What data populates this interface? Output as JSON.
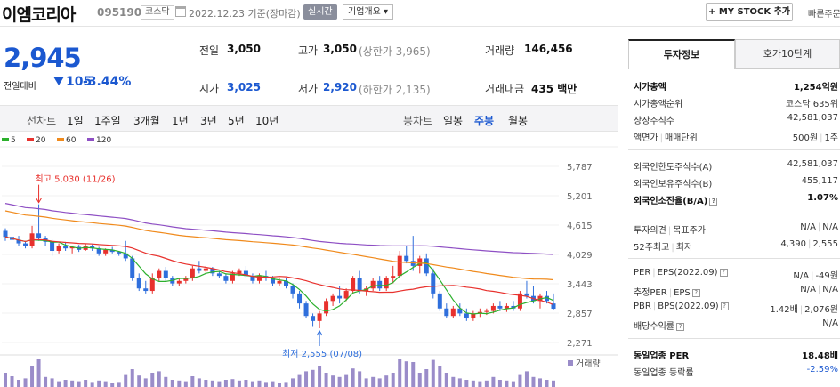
{
  "header": {
    "company_name": "이엠코리아",
    "stock_code": "095190",
    "market": "코스닥",
    "date_text": "2022.12.23  기준(장마감)",
    "realtime_label": "실시간",
    "overview_label": "기업개요 ▾",
    "my_stock_label": "+ MY STOCK 추가",
    "fast_link_label": "빠른주문"
  },
  "price": {
    "current": "2,945",
    "change_label": "전일대비",
    "change_amount": "105",
    "change_pct": "-3.44%"
  },
  "summary": {
    "prev_close_label": "전일",
    "prev_close": "3,050",
    "high_label": "고가",
    "high": "3,050",
    "upper_limit_text": "(상한가 3,965)",
    "volume_label": "거래량",
    "volume": "146,456",
    "open_label": "시가",
    "open": "3,025",
    "low_label": "저가",
    "low": "2,920",
    "lower_limit_text": "(하한가 2,135)",
    "amount_label": "거래대금",
    "amount": "435 백만"
  },
  "chart_tabs": {
    "line_label": "선차트",
    "line_items": [
      "1일",
      "1주일",
      "3개월",
      "1년",
      "3년",
      "5년",
      "10년"
    ],
    "candle_label": "봉차트",
    "candle_items": [
      "일봉",
      "주봉",
      "월봉"
    ],
    "candle_selected": "주봉"
  },
  "right_panel": {
    "tab_invest": "투자정보",
    "tab_orderbook": "호가10단계",
    "rows": {
      "mktcap_label": "시가총액",
      "mktcap": "1,254억원",
      "rank_label": "시가총액순위",
      "rank": "코스닥 635위",
      "shares_label": "상장주식수",
      "shares": "42,581,037",
      "par_label": "액면가",
      "unit_label": "매매단위",
      "par_value": "500원",
      "unit_value": "1주",
      "foreign_limit_label": "외국인한도주식수(A)",
      "foreign_limit": "42,581,037",
      "foreign_hold_label": "외국인보유주식수(B)",
      "foreign_hold": "455,117",
      "foreign_ratio_label": "외국인소진율(B/A)",
      "foreign_ratio": "1.07%",
      "opinion_label": "투자의견",
      "target_label": "목표주가",
      "opinion_value": "N/A",
      "target_value": "N/A",
      "w52_high_label": "52주최고",
      "w52_low_label": "최저",
      "w52_high": "4,390",
      "w52_low": "2,555",
      "per_label": "PER",
      "eps_label": "EPS(2022.09)",
      "per_value": "N/A",
      "eps_value": "-49원",
      "est_per_label": "추정PER",
      "est_eps_label": "EPS",
      "est_per_value": "N/A",
      "est_eps_value": "N/A",
      "pbr_label": "PBR",
      "bps_label": "BPS(2022.09)",
      "pbr_value": "1.42배",
      "bps_value": "2,076원",
      "div_label": "배당수익률",
      "div_value": "N/A",
      "ind_per_label": "동일업종 PER",
      "ind_per": "18.48배",
      "ind_rate_label": "동일업종 등락률",
      "ind_rate": "-2.59%"
    }
  },
  "chart_data": {
    "type": "candlestick",
    "ma_legend": [
      {
        "name": "5",
        "color": "#2cb02c"
      },
      {
        "name": "20",
        "color": "#e8312d"
      },
      {
        "name": "60",
        "color": "#f08a1c"
      },
      {
        "name": "120",
        "color": "#8e4fc4"
      }
    ],
    "y_ticks": [
      "5,787",
      "5,201",
      "4,615",
      "4,029",
      "3,443",
      "2,857",
      "2,271"
    ],
    "y_range": [
      2271,
      5787
    ],
    "max_label": "최고 5,030 (11/26)",
    "min_label": "최저 2,555 (07/08)",
    "volume_label": "거래량",
    "up_color": "#e8312d",
    "down_color": "#2f6fdc",
    "candles": [
      [
        4500,
        4550,
        4300,
        4380
      ],
      [
        4380,
        4420,
        4250,
        4320
      ],
      [
        4320,
        4400,
        4200,
        4250
      ],
      [
        4250,
        4300,
        4150,
        4200
      ],
      [
        4200,
        4600,
        4150,
        4450
      ],
      [
        4450,
        5030,
        4300,
        4350
      ],
      [
        4350,
        4400,
        4200,
        4280
      ],
      [
        4280,
        4320,
        4000,
        4100
      ],
      [
        4100,
        4250,
        4050,
        4200
      ],
      [
        4200,
        4280,
        4100,
        4150
      ],
      [
        4150,
        4200,
        4050,
        4180
      ],
      [
        4180,
        4220,
        4080,
        4120
      ],
      [
        4120,
        4250,
        4100,
        4200
      ],
      [
        4200,
        4230,
        4100,
        4150
      ],
      [
        4150,
        4180,
        4000,
        4050
      ],
      [
        4050,
        4150,
        4000,
        4120
      ],
      [
        4120,
        4180,
        4050,
        4080
      ],
      [
        4080,
        4100,
        4000,
        4050
      ],
      [
        4050,
        4300,
        3900,
        3950
      ],
      [
        3950,
        4000,
        3500,
        3550
      ],
      [
        3550,
        3650,
        3300,
        3350
      ],
      [
        3350,
        3500,
        3250,
        3300
      ],
      [
        3300,
        3650,
        3250,
        3550
      ],
      [
        3550,
        3750,
        3500,
        3700
      ],
      [
        3700,
        3780,
        3500,
        3550
      ],
      [
        3550,
        3600,
        3400,
        3450
      ],
      [
        3450,
        3550,
        3400,
        3500
      ],
      [
        3500,
        3600,
        3450,
        3550
      ],
      [
        3550,
        3800,
        3500,
        3750
      ],
      [
        3750,
        3900,
        3650,
        3700
      ],
      [
        3700,
        3800,
        3650,
        3750
      ],
      [
        3750,
        3780,
        3600,
        3650
      ],
      [
        3650,
        3700,
        3550,
        3600
      ],
      [
        3600,
        3650,
        3450,
        3500
      ],
      [
        3500,
        3700,
        3450,
        3650
      ],
      [
        3650,
        3750,
        3600,
        3700
      ],
      [
        3700,
        3800,
        3550,
        3600
      ],
      [
        3600,
        3650,
        3450,
        3500
      ],
      [
        3500,
        3650,
        3450,
        3600
      ],
      [
        3600,
        3700,
        3500,
        3550
      ],
      [
        3550,
        3600,
        3400,
        3450
      ],
      [
        3450,
        3550,
        3400,
        3500
      ],
      [
        3500,
        3550,
        3350,
        3400
      ],
      [
        3400,
        3450,
        3150,
        3250
      ],
      [
        3250,
        3300,
        2950,
        3050
      ],
      [
        3050,
        3100,
        2750,
        2800
      ],
      [
        2800,
        2850,
        2600,
        2700
      ],
      [
        2700,
        2900,
        2555,
        2850
      ],
      [
        2850,
        3150,
        2800,
        3100
      ],
      [
        3100,
        3250,
        3000,
        3200
      ],
      [
        3200,
        3400,
        3050,
        3150
      ],
      [
        3150,
        3350,
        3100,
        3300
      ],
      [
        3300,
        3600,
        3250,
        3550
      ],
      [
        3550,
        3700,
        3250,
        3300
      ],
      [
        3300,
        3400,
        3200,
        3350
      ],
      [
        3350,
        3550,
        3300,
        3500
      ],
      [
        3500,
        3600,
        3300,
        3350
      ],
      [
        3350,
        3600,
        3300,
        3550
      ],
      [
        3550,
        3800,
        3450,
        3600
      ],
      [
        3600,
        4100,
        3550,
        4000
      ],
      [
        4000,
        4200,
        3850,
        3900
      ],
      [
        3900,
        4400,
        3700,
        3800
      ],
      [
        3800,
        4000,
        3650,
        3950
      ],
      [
        3950,
        4050,
        3600,
        3650
      ],
      [
        3650,
        3750,
        3150,
        3250
      ],
      [
        3250,
        3300,
        2900,
        2950
      ],
      [
        2950,
        3050,
        2750,
        2800
      ],
      [
        2800,
        3000,
        2750,
        2950
      ],
      [
        2950,
        3050,
        2800,
        2850
      ],
      [
        2850,
        2950,
        2700,
        2750
      ],
      [
        2750,
        2900,
        2700,
        2850
      ],
      [
        2850,
        2950,
        2780,
        2880
      ],
      [
        2880,
        2950,
        2820,
        2900
      ],
      [
        2900,
        3050,
        2850,
        3000
      ],
      [
        3000,
        3100,
        2900,
        2950
      ],
      [
        2950,
        3050,
        2880,
        3000
      ],
      [
        3000,
        3100,
        2900,
        2950
      ],
      [
        2950,
        3300,
        2900,
        3250
      ],
      [
        3250,
        3500,
        3150,
        3200
      ],
      [
        3200,
        3400,
        3050,
        3100
      ],
      [
        3100,
        3250,
        2950,
        3200
      ],
      [
        3200,
        3300,
        3050,
        3100
      ],
      [
        3050,
        3250,
        2920,
        2945
      ]
    ],
    "volumes": [
      20,
      15,
      10,
      12,
      30,
      40,
      14,
      12,
      8,
      10,
      9,
      8,
      10,
      7,
      9,
      8,
      6,
      7,
      18,
      25,
      16,
      12,
      20,
      22,
      14,
      10,
      9,
      8,
      15,
      12,
      10,
      9,
      8,
      10,
      11,
      9,
      10,
      8,
      9,
      7,
      8,
      6,
      7,
      12,
      18,
      22,
      24,
      30,
      20,
      16,
      14,
      18,
      26,
      22,
      12,
      14,
      12,
      16,
      20,
      40,
      36,
      35,
      20,
      25,
      38,
      30,
      20,
      14,
      12,
      10,
      9,
      8,
      9,
      14,
      10,
      9,
      8,
      18,
      22,
      14,
      12,
      10,
      9
    ]
  }
}
